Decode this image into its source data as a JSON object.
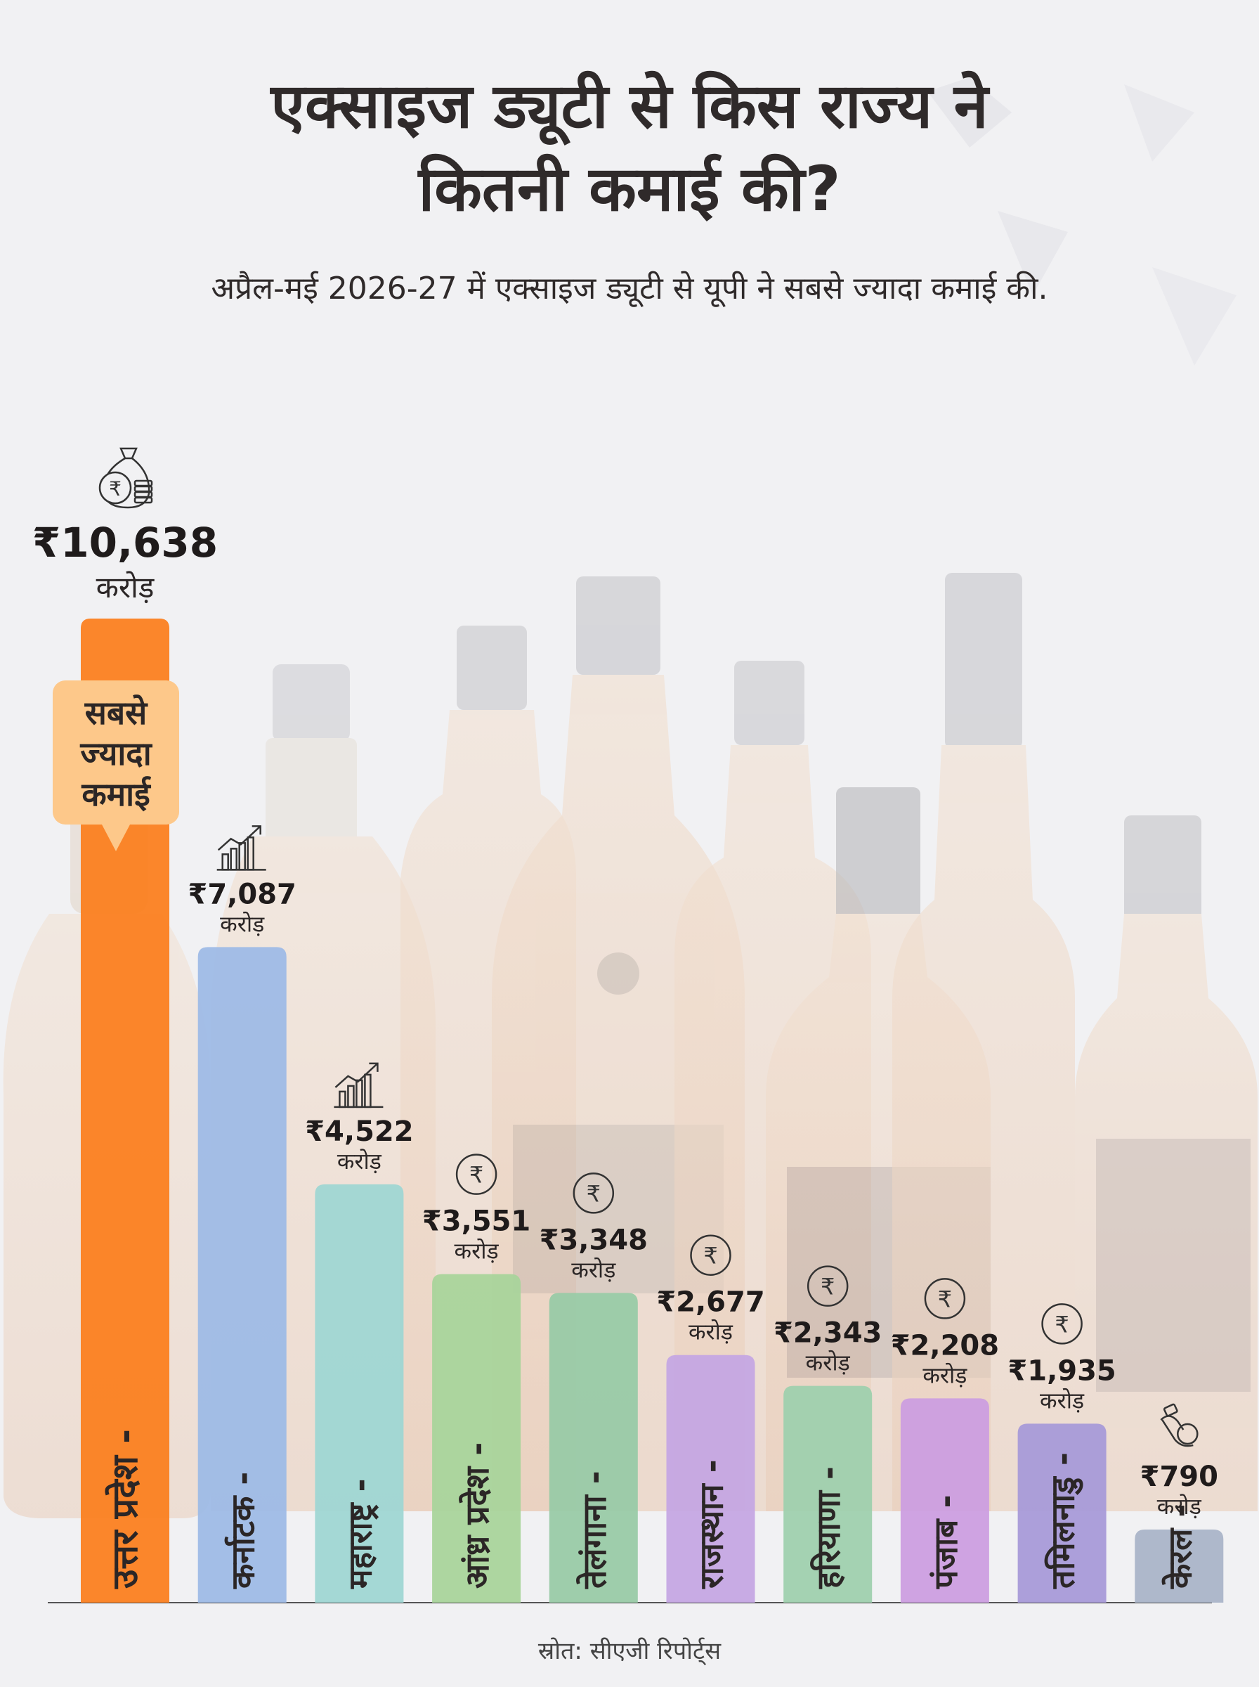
{
  "title_line1": "एक्साइज ड्यूटी से किस राज्य ने",
  "title_line2": "कितनी कमाई की?",
  "subtitle": "अप्रैल-मई 2026-27 में एक्साइज ड्यूटी से यूपी ने सबसे ज्यादा कमाई की.",
  "source": "स्रोत: सीएजी रिपोर्ट्स",
  "badge": {
    "line1": "सबसे",
    "line2": "ज्यादा",
    "line3": "कमाई",
    "color": "#fdc88a"
  },
  "chart_data": {
    "type": "bar",
    "title": "एक्साइज ड्यूटी से किस राज्य ने कितनी कमाई की?",
    "unit": "करोड़",
    "ylim": [
      0,
      10638
    ],
    "grid": false,
    "categories": [
      "उत्तर प्रदेश -",
      "कर्नाटक -",
      "महाराष्ट्र -",
      "आंध्र प्रदेश -",
      "तेलंगाना -",
      "राजस्थान -",
      "हरियाणा -",
      "पंजाब -",
      "तमिलनाडु -",
      "केरल -"
    ],
    "values": [
      10638,
      7087,
      4522,
      3551,
      3348,
      2677,
      2343,
      2208,
      1935,
      790
    ],
    "value_labels": [
      "₹10,638",
      "₹7,087",
      "₹4,522",
      "₹3,551",
      "₹3,348",
      "₹2,677",
      "₹2,343",
      "₹2,208",
      "₹1,935",
      "₹790"
    ],
    "colors": [
      "#fb8020",
      "#9ebae6",
      "#9fd6d3",
      "#a9d49b",
      "#99caa6",
      "#c5a6e3",
      "#9fd0ae",
      "#cc9ee0",
      "#a89ad8",
      "#aab4c8"
    ],
    "icons": [
      "money-bag-icon",
      "growth-chart-icon",
      "growth-chart-icon",
      "rupee-coin-icon",
      "rupee-coin-icon",
      "rupee-coin-icon",
      "rupee-coin-icon",
      "rupee-coin-icon",
      "rupee-coin-icon",
      "hand-coin-icon"
    ]
  }
}
